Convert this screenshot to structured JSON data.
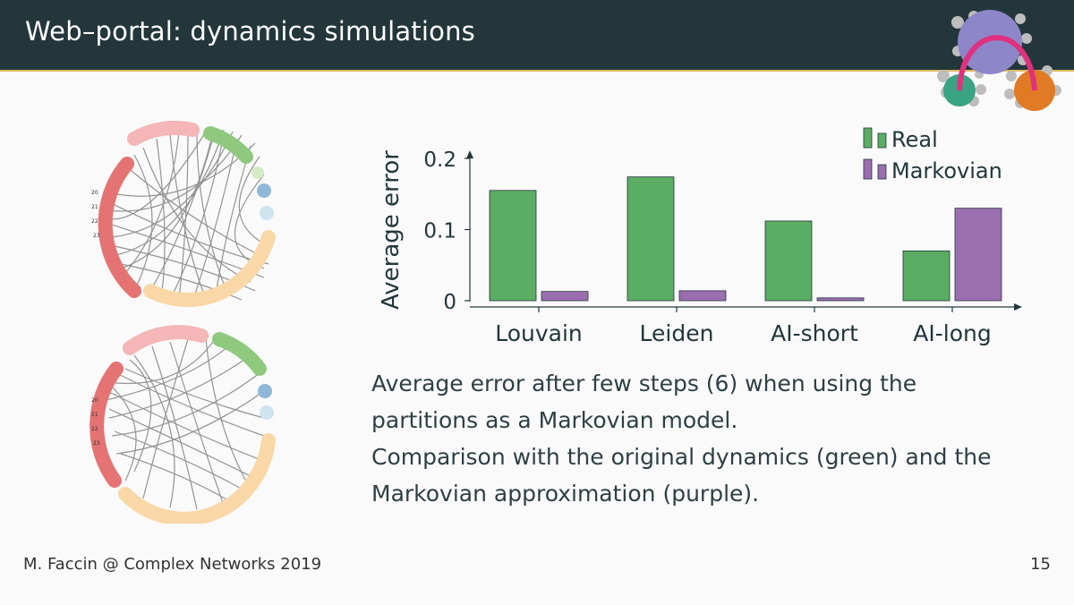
{
  "header": {
    "title": "Web–portal: dynamics simulations"
  },
  "footer": {
    "author": "M. Faccin @ Complex Networks 2019",
    "page_number": "15"
  },
  "caption": {
    "lines": [
      "Average error after few steps (6) when using the",
      "partitions as a Markovian model.",
      "Comparison with the original dynamics (green) and the",
      "Markovian approximation (purple)."
    ]
  },
  "colors": {
    "header_bg": "#23373b",
    "accent": "#e0b660",
    "real": "#5aad63",
    "markovian": "#9b6eb0"
  },
  "logo": {
    "icon": "network-logo-icon"
  },
  "diagrams": {
    "icon": "chord-diagram-icon",
    "top_labels": [
      "20",
      "21",
      "22",
      "23"
    ],
    "bottom_labels": [
      "20",
      "21",
      "22",
      "23"
    ]
  },
  "chart_data": {
    "type": "bar",
    "categories": [
      "Louvain",
      "Leiden",
      "AI-short",
      "AI-long"
    ],
    "series": [
      {
        "name": "Real",
        "color": "#5aad63",
        "values": [
          0.155,
          0.174,
          0.112,
          0.07
        ]
      },
      {
        "name": "Markovian",
        "color": "#9b6eb0",
        "values": [
          0.013,
          0.014,
          0.004,
          0.13
        ]
      }
    ],
    "ylabel": "Average error",
    "xlabel": "",
    "ylim": [
      0,
      0.2
    ],
    "yticks": [
      0,
      0.1,
      0.2
    ],
    "ytick_labels": [
      "0",
      "0.1",
      "0.2"
    ],
    "grid": false,
    "legend": "top-right"
  }
}
